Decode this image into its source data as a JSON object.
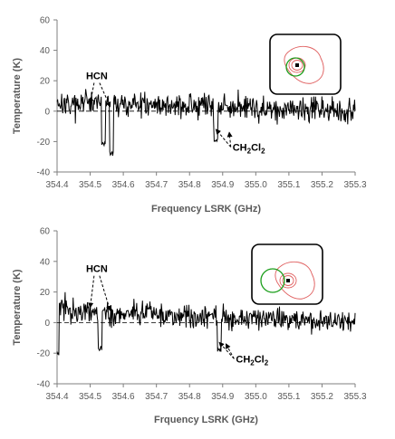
{
  "chart_data": [
    {
      "type": "line",
      "xlabel": "Frequency LSRK (GHz)",
      "ylabel": "Temperature (K)",
      "xlim": [
        354.4,
        355.3
      ],
      "ylim": [
        -40,
        60
      ],
      "xticks": [
        "354.4",
        "354.5",
        "354.6",
        "354.7",
        "354.8",
        "354.9",
        "355.0",
        "355.1",
        "355.2",
        "355.3"
      ],
      "yticks": [
        "-40",
        "-20",
        "0",
        "20",
        "40",
        "60"
      ],
      "noise_rms": 4.0,
      "baseline_start": 6,
      "baseline_end": 0,
      "features": [
        {
          "x": 354.54,
          "y": -22
        },
        {
          "x": 354.565,
          "y": -28
        },
        {
          "x": 354.88,
          "y": -19
        }
      ],
      "annotations": [
        {
          "label": "HCN",
          "x": 354.52,
          "y": 21,
          "arrow_targets": [
            [
              354.5,
              5
            ],
            [
              354.56,
              3
            ]
          ]
        },
        {
          "label": "CH2Cl2",
          "label_sub": [
            "2",
            "2"
          ],
          "x": 354.93,
          "y": -26,
          "arrow_targets": [
            [
              354.88,
              -12
            ],
            [
              354.92,
              -14
            ]
          ]
        }
      ],
      "grid": false,
      "legend": "none",
      "line_color": "#000000",
      "inset_colors": [
        "#e06060",
        "#1a9e1a",
        "#000000"
      ]
    },
    {
      "type": "line",
      "xlabel": "Frquency LSRK (GHz)",
      "ylabel": "Temperature (K)",
      "xlim": [
        354.4,
        355.3
      ],
      "ylim": [
        -40,
        60
      ],
      "xticks": [
        "354.4",
        "354.5",
        "354.6",
        "354.7",
        "354.8",
        "354.9",
        "355.0",
        "355.1",
        "355.2",
        "355.3"
      ],
      "yticks": [
        "-40",
        "-20",
        "0",
        "20",
        "40",
        "60"
      ],
      "noise_rms": 3.5,
      "baseline_start": 8,
      "baseline_end": 0,
      "features": [
        {
          "x": 354.4,
          "y": -20
        },
        {
          "x": 354.53,
          "y": -17
        },
        {
          "x": 354.89,
          "y": -18
        }
      ],
      "annotations": [
        {
          "label": "HCN",
          "x": 354.52,
          "y": 33,
          "arrow_targets": [
            [
              354.5,
              10
            ],
            [
              354.56,
              8
            ]
          ]
        },
        {
          "label": "CH2Cl2",
          "label_sub": [
            "2",
            "2"
          ],
          "x": 354.94,
          "y": -26,
          "arrow_targets": [
            [
              354.89,
              -13
            ],
            [
              354.91,
              -14
            ]
          ]
        }
      ],
      "grid": false,
      "legend": "none",
      "line_color": "#000000",
      "inset_colors": [
        "#e06060",
        "#1a9e1a",
        "#000000"
      ]
    }
  ]
}
